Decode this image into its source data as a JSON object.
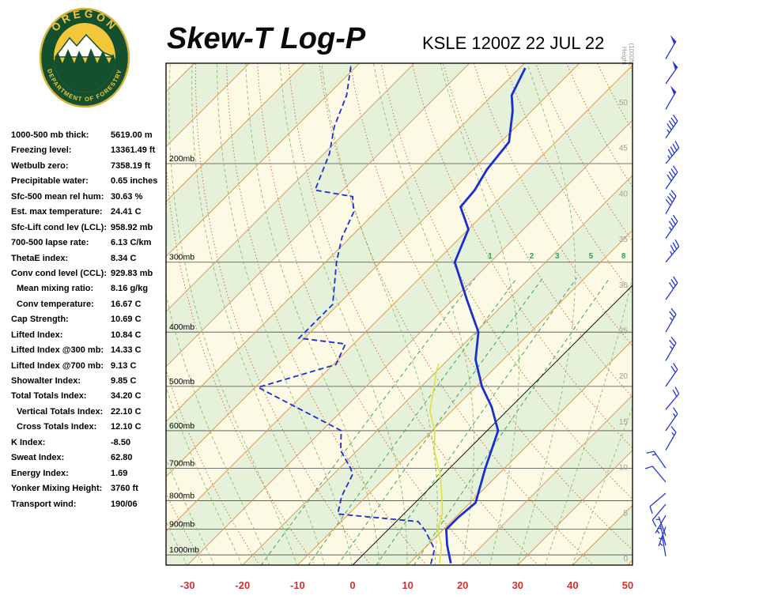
{
  "header": {
    "title": "Skew-T Log-P",
    "station": "KSLE 1200Z 22 JUL 22"
  },
  "logo": {
    "top_text": "OREGON",
    "bottom_text": "DEPARTMENT OF FORESTRY"
  },
  "indices": [
    {
      "label": "1000-500 mb thick:",
      "value": "5619.00 m",
      "indent": false
    },
    {
      "label": "Freezing level:",
      "value": "13361.49 ft",
      "indent": false
    },
    {
      "label": "Wetbulb zero:",
      "value": "7358.19 ft",
      "indent": false
    },
    {
      "label": "Precipitable water:",
      "value": "0.65 inches",
      "indent": false
    },
    {
      "label": "Sfc-500 mean rel hum:",
      "value": "30.63 %",
      "indent": false
    },
    {
      "label": "Est. max temperature:",
      "value": "24.41 C",
      "indent": false
    },
    {
      "label": "Sfc-Lift cond lev (LCL):",
      "value": "958.92 mb",
      "indent": false
    },
    {
      "label": "700-500 lapse rate:",
      "value": "6.13 C/km",
      "indent": false
    },
    {
      "label": "ThetaE index:",
      "value": "8.34 C",
      "indent": false
    },
    {
      "label": "Conv cond level (CCL):",
      "value": "929.83 mb",
      "indent": false
    },
    {
      "label": "Mean mixing ratio:",
      "value": "8.16 g/kg",
      "indent": true
    },
    {
      "label": "Conv temperature:",
      "value": "16.67 C",
      "indent": true
    },
    {
      "label": "Cap Strength:",
      "value": "10.69 C",
      "indent": false
    },
    {
      "label": "Lifted Index:",
      "value": "10.84 C",
      "indent": false
    },
    {
      "label": "Lifted Index @300 mb:",
      "value": "14.33 C",
      "indent": false
    },
    {
      "label": "Lifted Index @700 mb:",
      "value": "9.13 C",
      "indent": false
    },
    {
      "label": "Showalter Index:",
      "value": "9.85 C",
      "indent": false
    },
    {
      "label": "Total Totals Index:",
      "value": "34.20 C",
      "indent": false
    },
    {
      "label": "Vertical Totals Index:",
      "value": "22.10 C",
      "indent": true
    },
    {
      "label": "Cross Totals Index:",
      "value": "12.10 C",
      "indent": true
    },
    {
      "label": "K Index:",
      "value": "-8.50",
      "indent": false
    },
    {
      "label": "Sweat Index:",
      "value": "62.80",
      "indent": false
    },
    {
      "label": "Energy Index:",
      "value": "1.69",
      "indent": false
    },
    {
      "label": "Yonker Mixing Height:",
      "value": "3760 ft",
      "indent": false
    },
    {
      "label": "Transport wind:",
      "value": "190/06",
      "indent": false
    }
  ],
  "chart_data": {
    "type": "skew-t-log-p",
    "title": "Skew-T Log-P",
    "station": "KSLE 1200Z 22 JUL 22",
    "pressure_axis": {
      "labels": [
        "200mb",
        "300mb",
        "400mb",
        "500mb",
        "600mb",
        "700mb",
        "800mb",
        "900mb",
        "1000mb"
      ],
      "values": [
        200,
        300,
        400,
        500,
        600,
        700,
        800,
        900,
        1000
      ]
    },
    "temp_axis": {
      "ticks": [
        -30,
        -20,
        -10,
        0,
        10,
        20,
        30,
        40,
        50
      ],
      "unit": "C"
    },
    "height_axis": {
      "label_line1": "Height",
      "label_line2": "(1000ft)",
      "ticks": [
        0,
        5,
        10,
        15,
        20,
        25,
        30,
        35,
        40,
        45,
        50
      ]
    },
    "mixing_ratios": [
      1,
      2,
      3,
      5,
      8
    ],
    "temperature_profile": [
      [
        1035,
        17.5
      ],
      [
        960,
        13.5
      ],
      [
        900,
        10.5
      ],
      [
        858,
        10.5
      ],
      [
        807,
        11
      ],
      [
        700,
        6.5
      ],
      [
        600,
        2
      ],
      [
        544,
        -3.5
      ],
      [
        500,
        -9
      ],
      [
        448,
        -15
      ],
      [
        400,
        -19.5
      ],
      [
        350,
        -27.5
      ],
      [
        300,
        -36.5
      ],
      [
        262,
        -40
      ],
      [
        239,
        -45.5
      ],
      [
        223,
        -46
      ],
      [
        205,
        -47.5
      ],
      [
        183,
        -48.5
      ],
      [
        161,
        -53.5
      ],
      [
        151,
        -56.5
      ],
      [
        135,
        -59
      ]
    ],
    "dewpoint_profile": [
      [
        1038,
        14
      ],
      [
        977,
        12
      ],
      [
        906,
        7
      ],
      [
        872,
        4
      ],
      [
        845,
        -12
      ],
      [
        786,
        -14.5
      ],
      [
        718,
        -16.5
      ],
      [
        700,
        -18
      ],
      [
        651,
        -23
      ],
      [
        600,
        -26.5
      ],
      [
        502,
        -49.5
      ],
      [
        457,
        -39.5
      ],
      [
        420,
        -41.5
      ],
      [
        410,
        -51
      ],
      [
        357,
        -51
      ],
      [
        300,
        -58
      ],
      [
        271,
        -61.5
      ],
      [
        244,
        -64
      ],
      [
        229,
        -67
      ],
      [
        223,
        -75
      ],
      [
        192,
        -79
      ],
      [
        172,
        -83
      ],
      [
        151,
        -86.5
      ],
      [
        134,
        -91
      ]
    ],
    "wetbulb_profile": [
      [
        1036,
        15.5
      ],
      [
        961,
        12.5
      ],
      [
        901,
        9
      ],
      [
        845,
        7
      ],
      [
        791,
        4
      ],
      [
        719,
        -0.5
      ],
      [
        651,
        -6
      ],
      [
        600,
        -9.5
      ],
      [
        553,
        -14
      ],
      [
        502,
        -17.5
      ],
      [
        470,
        -20
      ],
      [
        455,
        -21
      ]
    ],
    "wind_barbs": [
      {
        "p": 1005,
        "dir": 350,
        "spd": 3
      },
      {
        "p": 962,
        "dir": 345,
        "spd": 5
      },
      {
        "p": 925,
        "dir": 340,
        "spd": 5
      },
      {
        "p": 891,
        "dir": 200,
        "spd": 5
      },
      {
        "p": 850,
        "dir": 210,
        "spd": 8
      },
      {
        "p": 812,
        "dir": 220,
        "spd": 10
      },
      {
        "p": 776,
        "dir": 230,
        "spd": 10
      },
      {
        "p": 741,
        "dir": 320,
        "spd": 10
      },
      {
        "p": 700,
        "dir": 325,
        "spd": 15
      },
      {
        "p": 650,
        "dir": 30,
        "spd": 15
      },
      {
        "p": 600,
        "dir": 35,
        "spd": 15
      },
      {
        "p": 550,
        "dir": 40,
        "spd": 20
      },
      {
        "p": 500,
        "dir": 35,
        "spd": 20
      },
      {
        "p": 450,
        "dir": 30,
        "spd": 25
      },
      {
        "p": 400,
        "dir": 30,
        "spd": 25
      },
      {
        "p": 350,
        "dir": 35,
        "spd": 30
      },
      {
        "p": 300,
        "dir": 40,
        "spd": 35
      },
      {
        "p": 272,
        "dir": 35,
        "spd": 35
      },
      {
        "p": 246,
        "dir": 30,
        "spd": 40
      },
      {
        "p": 222,
        "dir": 35,
        "spd": 40
      },
      {
        "p": 200,
        "dir": 40,
        "spd": 45
      },
      {
        "p": 180,
        "dir": 35,
        "spd": 45
      },
      {
        "p": 160,
        "dir": 30,
        "spd": 50
      },
      {
        "p": 144,
        "dir": 35,
        "spd": 50
      },
      {
        "p": 130,
        "dir": 30,
        "spd": 50
      }
    ],
    "colors": {
      "bg": "#fcf9e4",
      "band": "#e6f1da",
      "isotherm": "#dd9c4e",
      "dry_adiabat": "#c66a3e",
      "moist_adiabat": "#8fbc74",
      "mixing": "#3aa85c",
      "mixing_labels": "#2fa352",
      "pressure_line": "#4a4a4a",
      "freezing_line": "#1a1a1a",
      "temperature": "#1b2fd0",
      "dewpoint": "#1b2fd0",
      "wetbulb": "#e3df3a",
      "wind": "#2236d4",
      "temp_labels": "#d23030",
      "height_labels": "#a59c8d",
      "border": "#000000"
    }
  }
}
